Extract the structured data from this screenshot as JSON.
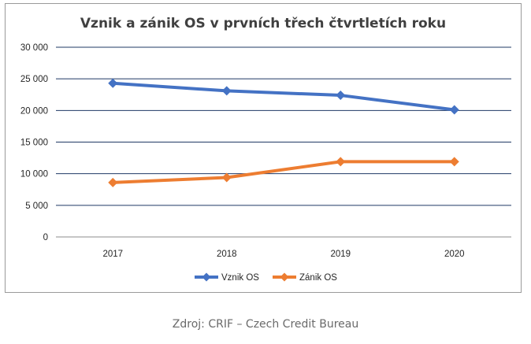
{
  "chart_data": {
    "type": "line",
    "title": "Vznik a zánik OS v prvních třech čtvrtletích roku",
    "categories": [
      "2017",
      "2018",
      "2019",
      "2020"
    ],
    "series": [
      {
        "name": "Vznik OS",
        "values": [
          24300,
          23100,
          22400,
          20100
        ],
        "color": "#4472c4",
        "marker": "diamond"
      },
      {
        "name": "Zánik OS",
        "values": [
          8600,
          9400,
          11900,
          11900
        ],
        "color": "#ed7d31",
        "marker": "diamond"
      }
    ],
    "ylim": [
      0,
      30000
    ],
    "y_ticks": [
      0,
      5000,
      10000,
      15000,
      20000,
      25000,
      30000
    ],
    "y_tick_labels": [
      "0",
      "5 000",
      "10 000",
      "15 000",
      "20 000",
      "25 000",
      "30 000"
    ],
    "grid": true,
    "legend_position": "bottom"
  },
  "source": "Zdroj: CRIF – Czech Credit Bureau"
}
